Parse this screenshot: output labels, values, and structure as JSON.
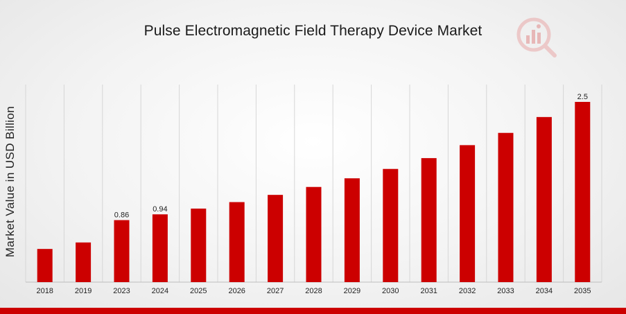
{
  "chart_data": {
    "type": "bar",
    "title": "Pulse Electromagnetic Field Therapy Device Market",
    "xlabel": "",
    "ylabel": "Market Value in USD Billion",
    "categories": [
      "2018",
      "2019",
      "2023",
      "2024",
      "2025",
      "2026",
      "2027",
      "2028",
      "2029",
      "2030",
      "2031",
      "2032",
      "2033",
      "2034",
      "2035"
    ],
    "values": [
      0.46,
      0.55,
      0.86,
      0.94,
      1.02,
      1.11,
      1.21,
      1.32,
      1.44,
      1.57,
      1.72,
      1.9,
      2.07,
      2.29,
      2.5
    ],
    "data_labels": {
      "2023": "0.86",
      "2024": "0.94",
      "2035": "2.5"
    },
    "ylim": [
      0,
      2.5
    ],
    "grid": "vertical",
    "bar_color": "#cc0000",
    "accent_color": "#cc0000"
  },
  "logo": {
    "icon": "market-research-logo-icon"
  }
}
